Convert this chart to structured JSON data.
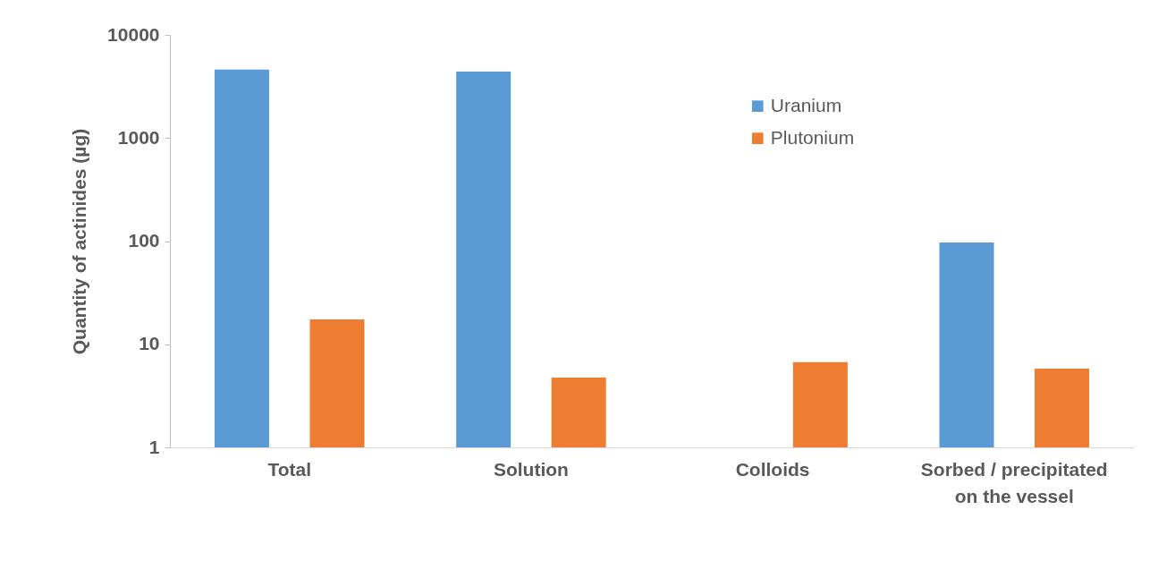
{
  "chart_data": {
    "type": "bar",
    "ylabel": "Quantity of actinides (µg)",
    "categories": [
      "Total",
      "Solution",
      "Colloids",
      "Sorbed / precipitated on the vessel"
    ],
    "series": [
      {
        "name": "Uranium",
        "color": "#5b9bd5",
        "values": [
          4600,
          4400,
          null,
          97
        ]
      },
      {
        "name": "Plutonium",
        "color": "#ed7d31",
        "values": [
          17.4,
          4.75,
          6.7,
          5.8
        ]
      }
    ],
    "log": true,
    "ylim": [
      1,
      10000
    ],
    "yticks": [
      1,
      10,
      100,
      1000,
      10000
    ],
    "legend": "top right",
    "grid": false
  }
}
